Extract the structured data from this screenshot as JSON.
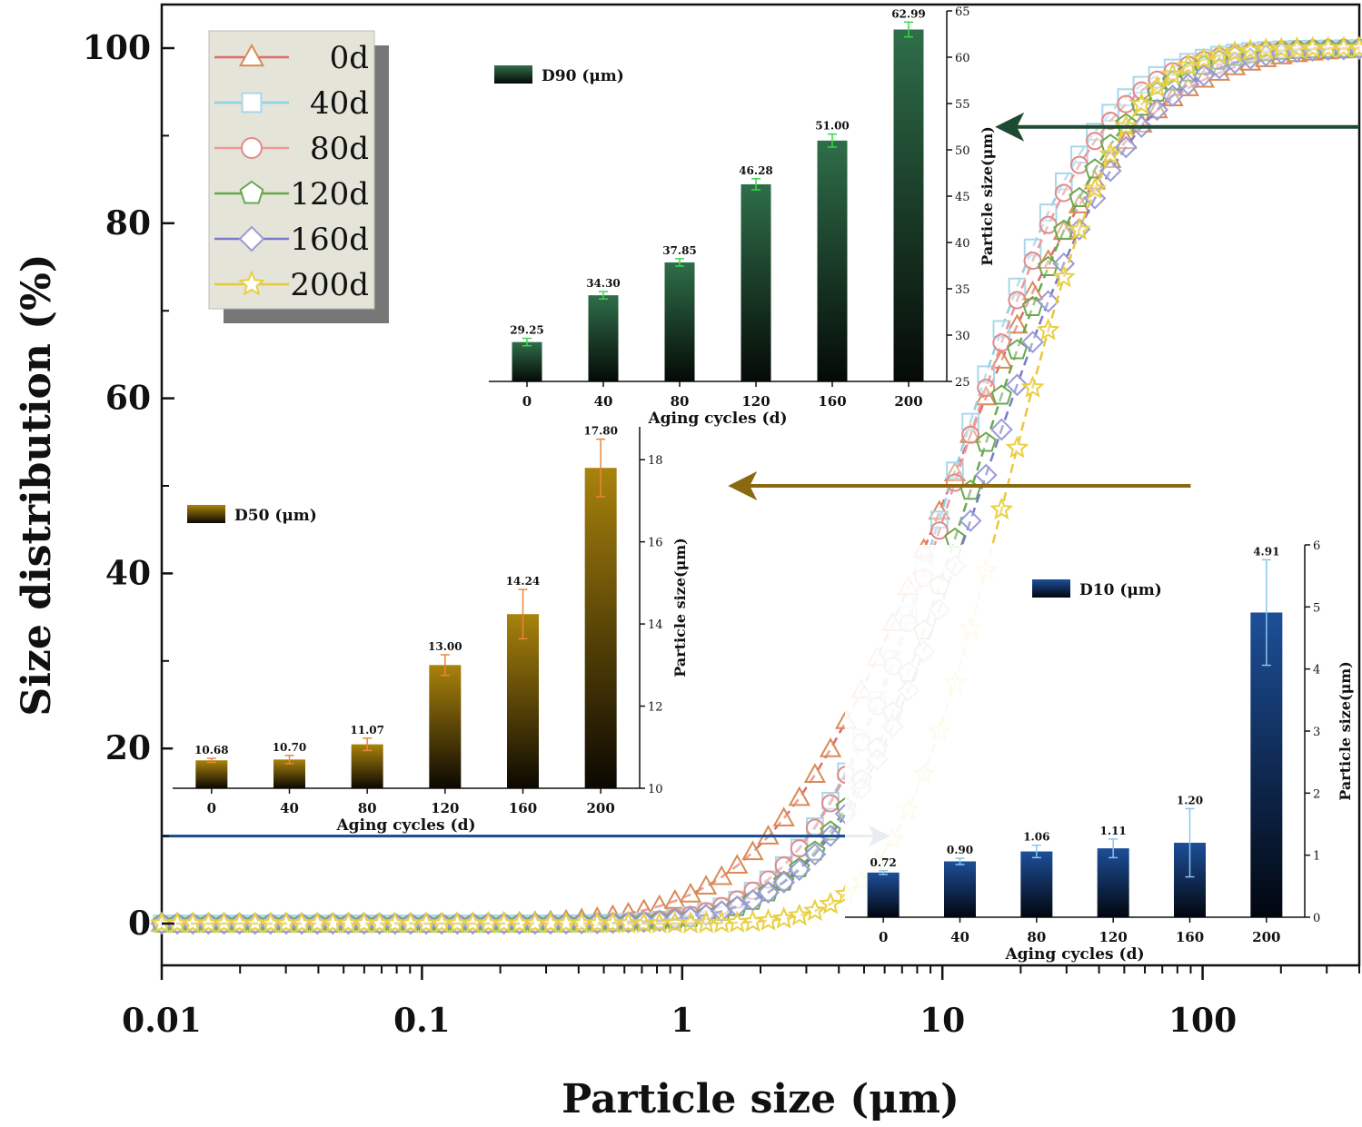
{
  "chart_data": [
    {
      "type": "scatter",
      "role": "main",
      "xlabel": "Particle size (μm)",
      "ylabel": "Size distribution (%)",
      "xscale": "log",
      "xlim": [
        0.01,
        400
      ],
      "ylim": [
        -5,
        105
      ],
      "xticks": [
        "0.01",
        "0.1",
        "1",
        "10",
        "100"
      ],
      "xtick_values": [
        0.01,
        0.1,
        1,
        10,
        100
      ],
      "yticks": [
        "0",
        "20",
        "40",
        "60",
        "80",
        "100"
      ],
      "ytick_values": [
        0,
        20,
        40,
        60,
        80,
        100
      ],
      "legend_position": "top-left",
      "series": [
        {
          "name": "0d",
          "marker": "triangle",
          "color": "#d98a55",
          "line_color": "#e06a6a",
          "d50": 10.68,
          "spread": 1.25,
          "offset": 0
        },
        {
          "name": "40d",
          "marker": "square",
          "color": "#a8d8ea",
          "line_color": "#8fcfe8",
          "d50": 10.7,
          "spread": 0.98,
          "offset": 0
        },
        {
          "name": "80d",
          "marker": "circle",
          "color": "#e08a8a",
          "line_color": "#ec9a9a",
          "d50": 11.07,
          "spread": 1.0,
          "offset": 0
        },
        {
          "name": "120d",
          "marker": "pentagon",
          "color": "#6aa84f",
          "line_color": "#6aa84f",
          "d50": 13.0,
          "spread": 1.0,
          "offset": 0
        },
        {
          "name": "160d",
          "marker": "diamond",
          "color": "#9a9ad8",
          "line_color": "#7a7ac8",
          "d50": 14.24,
          "spread": 1.05,
          "offset": 0
        },
        {
          "name": "200d",
          "marker": "star",
          "color": "#e8d040",
          "line_color": "#e8c840",
          "d50": 17.8,
          "spread": 0.78,
          "offset": 0
        }
      ],
      "arrows": [
        {
          "y": 91,
          "x_from": 400,
          "x_to": 17,
          "color": "#1e4a32"
        },
        {
          "y": 50,
          "x_from": 90,
          "x_to": 1.6,
          "color": "#8a6a10"
        },
        {
          "y": 10,
          "x_from": 0.01,
          "x_to": 6,
          "color": "#1a4a8a"
        }
      ]
    },
    {
      "type": "bar",
      "role": "inset-D90",
      "legend": "D90 (μm)",
      "xlabel": "Aging cycles (d)",
      "ylabel": "Particle size(μm)",
      "categories": [
        "0",
        "40",
        "80",
        "120",
        "160",
        "200"
      ],
      "values": [
        29.25,
        34.3,
        37.85,
        46.28,
        51.0,
        62.99
      ],
      "value_labels": [
        "29.25",
        "34.30",
        "37.85",
        "46.28",
        "51.00",
        "62.99"
      ],
      "errors": [
        0.4,
        0.4,
        0.4,
        0.6,
        0.7,
        0.8
      ],
      "ylim": [
        25,
        65
      ],
      "yticks": [
        "25",
        "30",
        "35",
        "40",
        "45",
        "50",
        "55",
        "60",
        "65"
      ],
      "ytick_values": [
        25,
        30,
        35,
        40,
        45,
        50,
        55,
        60,
        65
      ],
      "bar_color_top": "#2f6e4a",
      "bar_color_bottom": "#050a06",
      "error_color": "#39d84a"
    },
    {
      "type": "bar",
      "role": "inset-D50",
      "legend": "D50 (μm)",
      "xlabel": "Aging cycles (d)",
      "ylabel": "Particle size(μm)",
      "categories": [
        "0",
        "40",
        "80",
        "120",
        "160",
        "200"
      ],
      "values": [
        10.68,
        10.7,
        11.07,
        13.0,
        14.24,
        17.8
      ],
      "value_labels": [
        "10.68",
        "10.70",
        "11.07",
        "13.00",
        "14.24",
        "17.80"
      ],
      "errors": [
        0.05,
        0.1,
        0.15,
        0.25,
        0.6,
        0.7
      ],
      "ylim": [
        10,
        18.8
      ],
      "yticks": [
        "10",
        "12",
        "14",
        "16",
        "18"
      ],
      "ytick_values": [
        10,
        12,
        14,
        16,
        18
      ],
      "bar_color_top": "#a9830c",
      "bar_color_bottom": "#0c0802",
      "error_color": "#e8873a"
    },
    {
      "type": "bar",
      "role": "inset-D10",
      "legend": "D10 (μm)",
      "xlabel": "Aging cycles (d)",
      "ylabel": "Particle size(μm)",
      "categories": [
        "0",
        "40",
        "80",
        "120",
        "160",
        "200"
      ],
      "values": [
        0.72,
        0.9,
        1.06,
        1.11,
        1.2,
        4.91
      ],
      "value_labels": [
        "0.72",
        "0.90",
        "1.06",
        "1.11",
        "1.20",
        "4.91"
      ],
      "errors": [
        0.03,
        0.05,
        0.1,
        0.15,
        0.55,
        0.85
      ],
      "ylim": [
        0,
        6
      ],
      "yticks": [
        "0",
        "1",
        "2",
        "3",
        "4",
        "5",
        "6"
      ],
      "ytick_values": [
        0,
        1,
        2,
        3,
        4,
        5,
        6
      ],
      "bar_color_top": "#1d4f99",
      "bar_color_bottom": "#02060f",
      "error_color": "#88c6ea"
    }
  ]
}
